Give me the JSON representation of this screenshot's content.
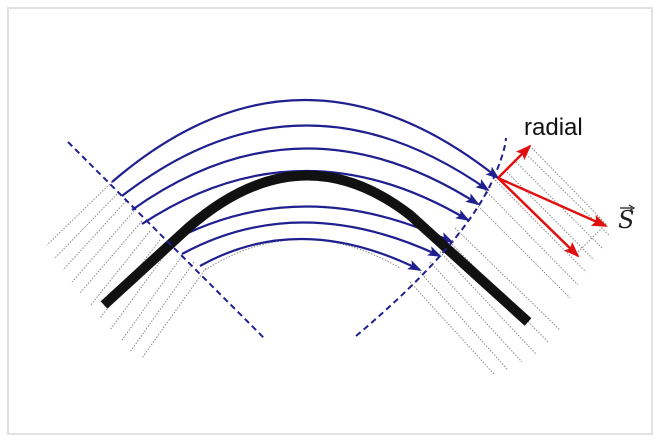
{
  "diagram": {
    "labels": {
      "radial": "radial",
      "s_vector": "S"
    },
    "colors": {
      "field_lines": "#1f1f8f",
      "guide_waveguide": "#111111",
      "vectors": "#e01010",
      "hatch_lines": "#8a8a8a",
      "frame_border": "#e2e2e2"
    }
  }
}
